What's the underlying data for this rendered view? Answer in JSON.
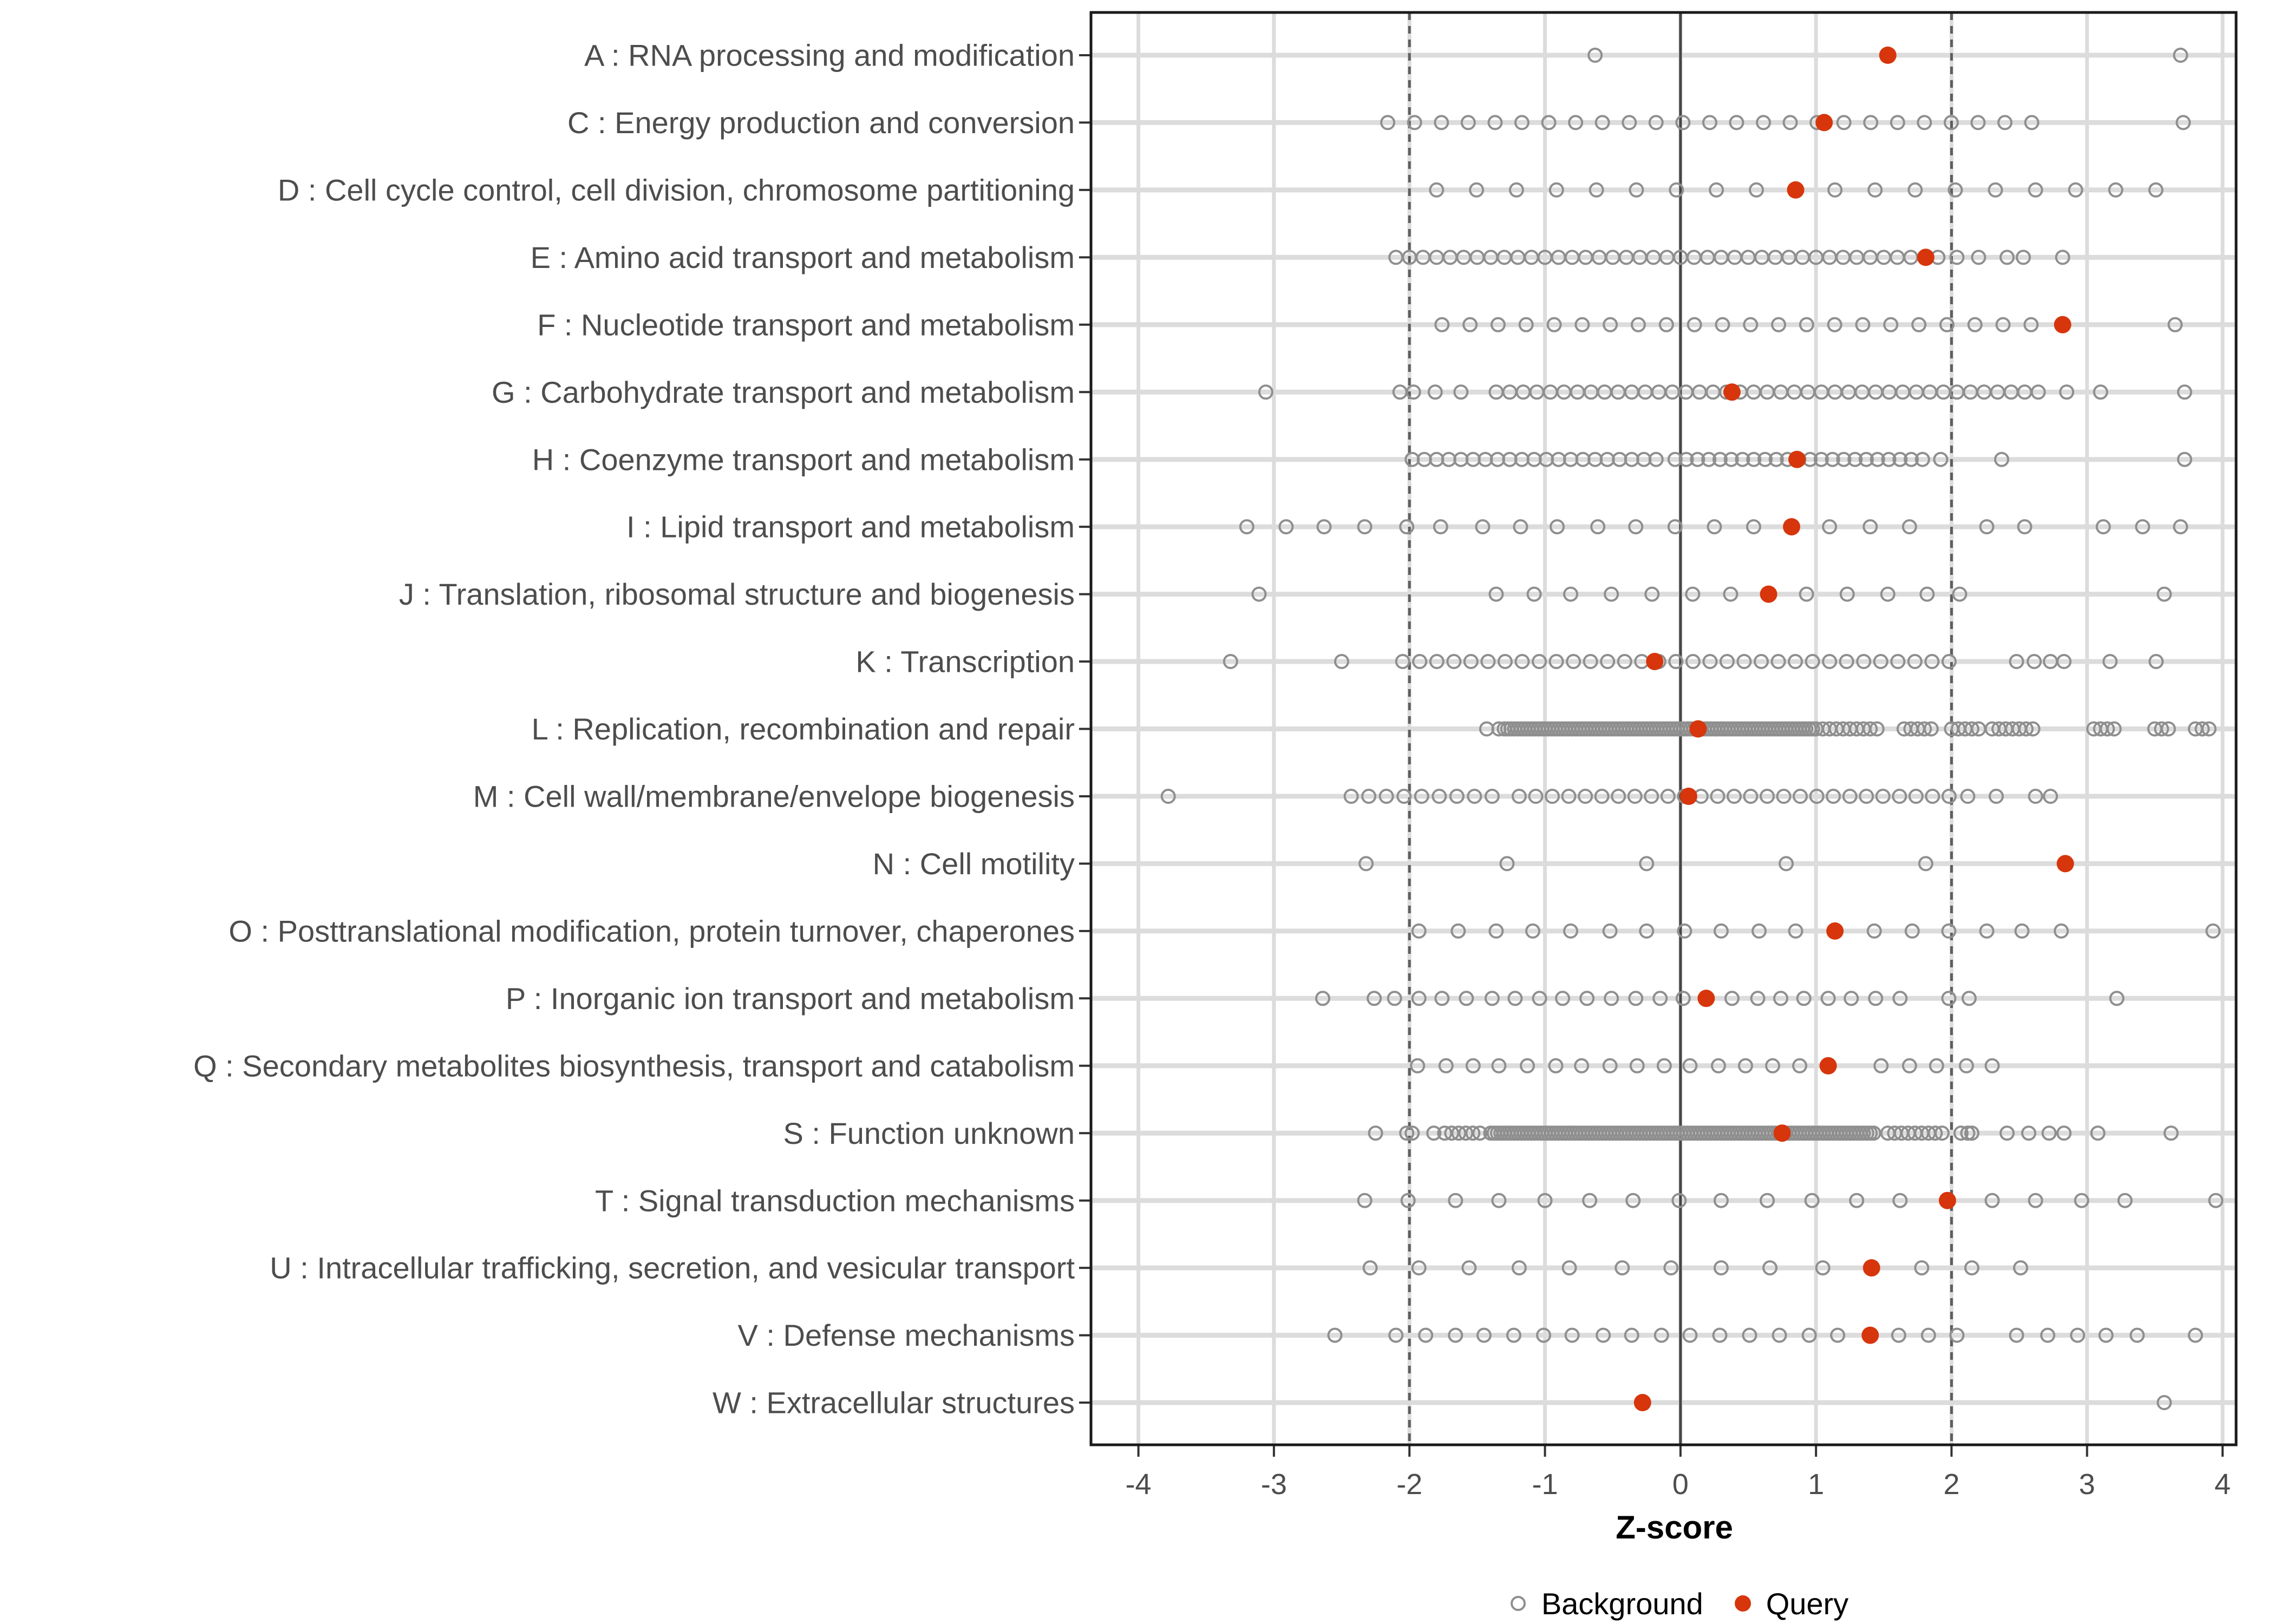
{
  "colors": {
    "query": "#D7350C",
    "background_stroke": "#8F8F8F",
    "grid": "#DCDCDC",
    "refline_solid": "#454545",
    "refline_dashed": "#5E5E5E",
    "axis_text": "#4D4D4D",
    "tick": "#333333",
    "panel_border": "#1A1A1A",
    "page_bg": "#FFFFFF"
  },
  "chart_data": {
    "type": "scatter",
    "title": "",
    "xlabel": "Z-score",
    "ylabel": "",
    "xticks": [
      -4,
      -3,
      -2,
      -1,
      0,
      1,
      2,
      3,
      4
    ],
    "xlim": [
      -4.35,
      4.1
    ],
    "grid": "major-light-gray",
    "reference_lines": {
      "solid": [
        0
      ],
      "dashed": [
        -2,
        2
      ]
    },
    "legend": {
      "position": "bottom-center",
      "items": [
        {
          "label": "Background",
          "marker": "open-circle",
          "color": "#8F8F8F"
        },
        {
          "label": "Query",
          "marker": "filled-circle",
          "color": "#D7350C"
        }
      ]
    },
    "encoding_note": "background arrays mix plain z-values and {from,to,step} runs for dense overplotted bands",
    "categories": [
      {
        "code": "A",
        "label": "A : RNA processing and modification",
        "query": 1.53,
        "background": [
          -0.63,
          3.69
        ]
      },
      {
        "code": "C",
        "label": "C : Energy production and conversion",
        "query": 1.06,
        "background": [
          {
            "from": -2.16,
            "to": 2.6,
            "step": 0.198
          },
          3.71
        ]
      },
      {
        "code": "D",
        "label": "D : Cell cycle control, cell division, chromosome partitioning",
        "query": 0.85,
        "background": [
          {
            "from": -1.8,
            "to": 0.56,
            "step": 0.295
          },
          {
            "from": 1.14,
            "to": 3.52,
            "step": 0.296
          }
        ]
      },
      {
        "code": "E",
        "label": "E : Amino acid transport and metabolism",
        "query": 1.81,
        "background": [
          {
            "from": -2.1,
            "to": 1.7,
            "step": 0.1
          },
          1.9,
          2.04,
          2.2,
          2.41,
          2.53,
          2.82
        ]
      },
      {
        "code": "F",
        "label": "F : Nucleotide transport and metabolism",
        "query": 2.82,
        "background": [
          {
            "from": -1.76,
            "to": 2.6,
            "step": 0.207
          },
          3.65
        ]
      },
      {
        "code": "G",
        "label": "G : Carbohydrate transport and metabolism",
        "query": 0.38,
        "background": [
          -3.06,
          -2.07,
          -1.97,
          -1.81,
          -1.62,
          {
            "from": -1.36,
            "to": 2.64,
            "step": 0.1
          },
          2.85,
          3.1,
          3.72
        ]
      },
      {
        "code": "H",
        "label": "H : Coenzyme transport and metabolism",
        "query": 0.86,
        "background": [
          {
            "from": -1.98,
            "to": -0.18,
            "step": 0.09
          },
          {
            "from": -0.04,
            "to": 1.79,
            "step": 0.083
          },
          1.92,
          2.37,
          3.72
        ]
      },
      {
        "code": "I",
        "label": "I : Lipid transport and metabolism",
        "query": 0.82,
        "background": [
          -3.2,
          -2.91,
          -2.63,
          -2.33,
          -2.02,
          -1.77,
          -1.46,
          -1.18,
          -0.91,
          -0.61,
          -0.33,
          -0.04,
          0.25,
          0.54,
          1.1,
          1.4,
          1.69,
          2.26,
          2.54,
          3.12,
          3.41,
          3.69
        ]
      },
      {
        "code": "J",
        "label": "J : Translation, ribosomal structure and biogenesis",
        "query": 0.65,
        "background": [
          -3.11,
          -1.36,
          -1.08,
          -0.81,
          -0.51,
          -0.21,
          0.09,
          0.37,
          0.93,
          1.23,
          1.53,
          1.82,
          2.06,
          3.57
        ]
      },
      {
        "code": "K",
        "label": "K : Transcription",
        "query": -0.19,
        "background": [
          -3.32,
          -2.5,
          {
            "from": -2.05,
            "to": 2.0,
            "step": 0.126
          },
          2.48,
          2.61,
          2.73,
          2.83,
          3.17,
          3.51
        ]
      },
      {
        "code": "L",
        "label": "L : Replication, recombination and repair",
        "query": 0.13,
        "background": [
          -1.43,
          -1.34,
          {
            "from": -1.3,
            "to": 1.0,
            "step": 0.025
          },
          {
            "from": 1.05,
            "to": 1.45,
            "step": 0.05
          },
          {
            "from": 1.65,
            "to": 1.85,
            "step": 0.05
          },
          {
            "from": 2.0,
            "to": 2.2,
            "step": 0.05
          },
          {
            "from": 2.3,
            "to": 2.6,
            "step": 0.05
          },
          {
            "from": 3.05,
            "to": 3.2,
            "step": 0.05
          },
          3.5,
          3.55,
          3.6,
          3.8,
          3.85,
          3.9
        ]
      },
      {
        "code": "M",
        "label": "M : Cell wall/membrane/envelope biogenesis",
        "query": 0.06,
        "background": [
          -3.78,
          {
            "from": -2.43,
            "to": -1.39,
            "step": 0.13
          },
          {
            "from": -1.19,
            "to": 2.0,
            "step": 0.122
          },
          2.12,
          2.33,
          2.62,
          2.73
        ]
      },
      {
        "code": "N",
        "label": "N : Cell motility",
        "query": 2.84,
        "background": [
          -2.32,
          -1.28,
          -0.25,
          0.78,
          1.81
        ]
      },
      {
        "code": "O",
        "label": "O : Posttranslational modification, protein turnover, chaperones",
        "query": 1.14,
        "background": [
          -1.93,
          -1.64,
          -1.36,
          -1.09,
          -0.81,
          -0.52,
          -0.25,
          0.03,
          0.3,
          0.58,
          0.85,
          1.43,
          1.71,
          1.98,
          2.26,
          2.52,
          2.81,
          3.93
        ]
      },
      {
        "code": "P",
        "label": "P : Inorganic ion transport and metabolism",
        "query": 0.19,
        "background": [
          -2.64,
          -2.26,
          -2.11,
          -1.93,
          -1.76,
          -1.58,
          -1.39,
          -1.22,
          -1.04,
          -0.87,
          -0.69,
          -0.51,
          -0.33,
          -0.15,
          0.02,
          0.38,
          0.57,
          0.74,
          0.91,
          1.09,
          1.26,
          1.44,
          1.62,
          1.98,
          2.13,
          3.22
        ]
      },
      {
        "code": "Q",
        "label": "Q : Secondary metabolites biosynthesis, transport and catabolism",
        "query": 1.09,
        "background": [
          -1.94,
          -1.73,
          -1.53,
          -1.34,
          -1.13,
          -0.92,
          -0.73,
          -0.52,
          -0.32,
          -0.12,
          0.07,
          0.28,
          0.48,
          0.68,
          0.88,
          1.48,
          1.69,
          1.89,
          2.11,
          2.3
        ]
      },
      {
        "code": "S",
        "label": "S : Function unknown",
        "query": 0.75,
        "background": [
          -2.25,
          -2.02,
          -1.98,
          -1.82,
          {
            "from": -1.74,
            "to": -1.48,
            "step": 0.052
          },
          {
            "from": -1.4,
            "to": 1.44,
            "step": 0.025
          },
          {
            "from": 1.53,
            "to": 1.93,
            "step": 0.05
          },
          2.07,
          2.12,
          2.15,
          2.41,
          2.57,
          2.72,
          2.83,
          3.08,
          3.62
        ]
      },
      {
        "code": "T",
        "label": "T : Signal transduction mechanisms",
        "query": 1.97,
        "background": [
          -2.33,
          -2.01,
          -1.66,
          -1.34,
          -1.0,
          -0.67,
          -0.35,
          -0.01,
          0.3,
          0.64,
          0.97,
          1.3,
          1.62,
          2.3,
          2.62,
          2.96,
          3.28,
          3.95
        ]
      },
      {
        "code": "U",
        "label": "U : Intracellular trafficking, secretion, and vesicular transport",
        "query": 1.41,
        "background": [
          -2.29,
          -1.93,
          -1.56,
          -1.19,
          -0.82,
          -0.43,
          -0.07,
          0.3,
          0.66,
          1.05,
          1.78,
          2.15,
          2.51
        ]
      },
      {
        "code": "V",
        "label": "V : Defense mechanisms",
        "query": 1.4,
        "background": [
          -2.55,
          -2.1,
          -1.88,
          -1.66,
          -1.45,
          -1.23,
          -1.01,
          -0.8,
          -0.57,
          -0.36,
          -0.14,
          0.07,
          0.29,
          0.51,
          0.73,
          0.95,
          1.16,
          1.61,
          1.83,
          2.04,
          2.48,
          2.71,
          2.93,
          3.14,
          3.37,
          3.8
        ]
      },
      {
        "code": "W",
        "label": "W : Extracellular structures",
        "query": -0.28,
        "background": [
          3.57
        ]
      }
    ]
  }
}
